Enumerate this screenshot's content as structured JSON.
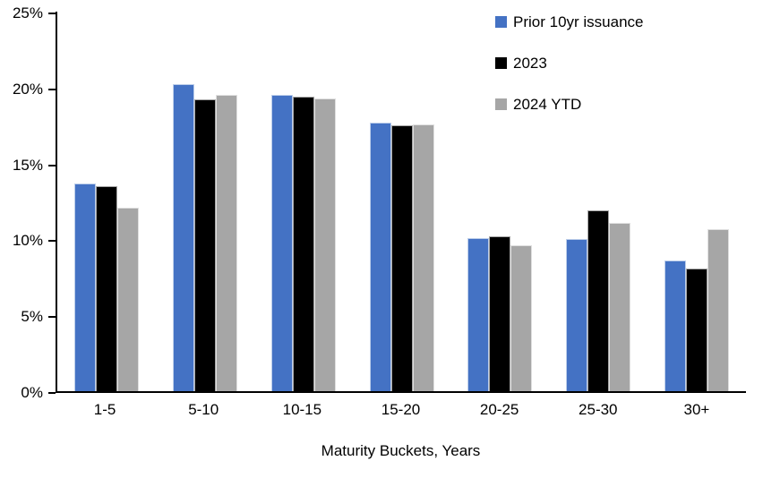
{
  "chart_data": {
    "type": "bar",
    "title": "",
    "xlabel": "Maturity Buckets, Years",
    "ylabel": "",
    "ylim": [
      0,
      25
    ],
    "ytick_step": 5,
    "yticks": [
      "0%",
      "5%",
      "10%",
      "15%",
      "20%",
      "25%"
    ],
    "grid": false,
    "legend_position": "top-right",
    "axis_color": "#000000",
    "categories": [
      "1-5",
      "5-10",
      "10-15",
      "15-20",
      "20-25",
      "25-30",
      "30+"
    ],
    "series": [
      {
        "name": "Prior 10yr issuance",
        "color": "#4472C4",
        "values": [
          13.7,
          20.2,
          19.5,
          17.7,
          10.1,
          10.0,
          8.6
        ]
      },
      {
        "name": "2023",
        "color": "#000000",
        "values": [
          13.5,
          19.2,
          19.4,
          17.5,
          10.2,
          11.9,
          8.1
        ]
      },
      {
        "name": "2024 YTD",
        "color": "#A6A6A6",
        "values": [
          12.1,
          19.5,
          19.3,
          17.6,
          9.6,
          11.1,
          10.7
        ]
      }
    ]
  }
}
